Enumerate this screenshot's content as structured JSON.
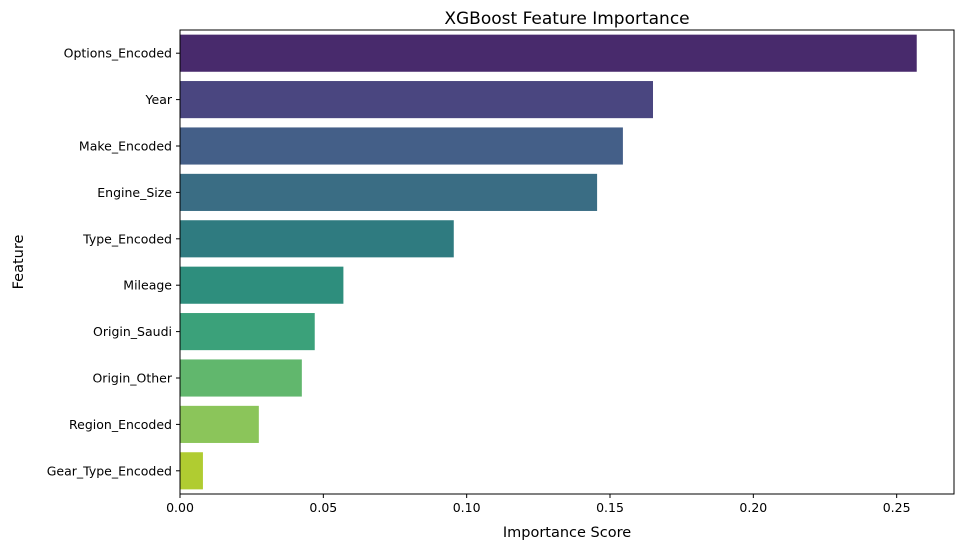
{
  "chart_data": {
    "type": "bar",
    "orientation": "horizontal",
    "title": "XGBoost Feature Importance",
    "xlabel": "Importance Score",
    "ylabel": "Feature",
    "categories": [
      "Options_Encoded",
      "Year",
      "Make_Encoded",
      "Engine_Size",
      "Type_Encoded",
      "Mileage",
      "Origin_Saudi",
      "Origin_Other",
      "Region_Encoded",
      "Gear_Type_Encoded"
    ],
    "values": [
      0.257,
      0.165,
      0.1545,
      0.1455,
      0.0955,
      0.057,
      0.047,
      0.0425,
      0.0275,
      0.008
    ],
    "colors": [
      "#482a6c",
      "#4a4680",
      "#445f88",
      "#3a6d84",
      "#2f7b80",
      "#2e8e7d",
      "#3ba17a",
      "#61b76d",
      "#8bc55a",
      "#b0cc31"
    ],
    "xlim": [
      0,
      0.27
    ],
    "xticks": [
      0.0,
      0.05,
      0.1,
      0.15,
      0.2,
      0.25
    ],
    "xtick_labels": [
      "0.00",
      "0.05",
      "0.10",
      "0.15",
      "0.20",
      "0.25"
    ],
    "grid": false,
    "legend": "none"
  }
}
